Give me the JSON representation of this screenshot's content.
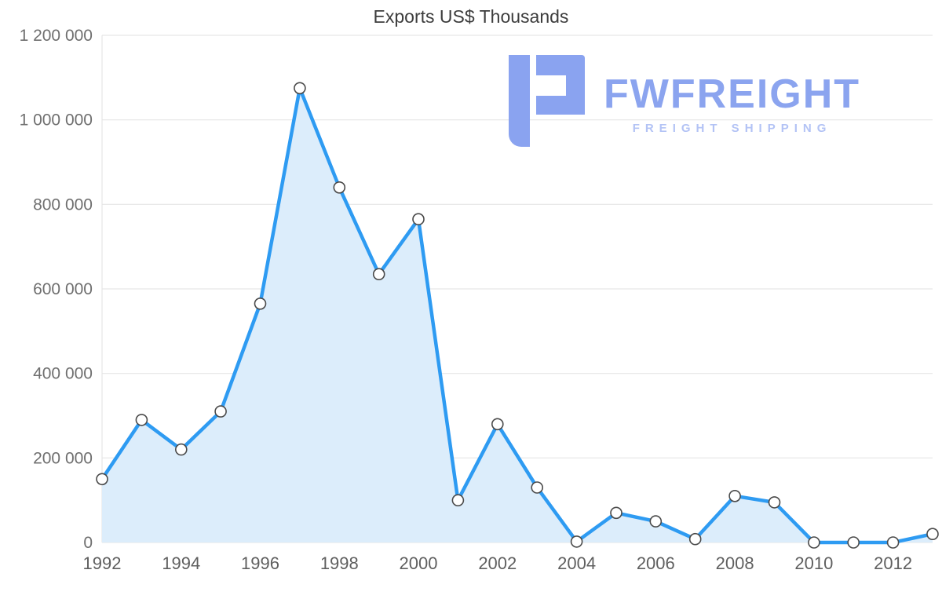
{
  "title": "Exports US$ Thousands",
  "watermark": {
    "name": "FWFREIGHT",
    "tagline": "FREIGHT SHIPPING",
    "icon_color": "#8aa3f0",
    "name_color": "#8ba4ef",
    "tagline_color": "#b3c3f5"
  },
  "chart_data": {
    "type": "area",
    "title": "Exports US$ Thousands",
    "xlabel": "",
    "ylabel": "",
    "x": [
      1992,
      1993,
      1994,
      1995,
      1996,
      1997,
      1998,
      1999,
      2000,
      2001,
      2002,
      2003,
      2004,
      2005,
      2006,
      2007,
      2008,
      2009,
      2010,
      2011,
      2012,
      2013
    ],
    "values": [
      150000,
      290000,
      220000,
      310000,
      565000,
      1075000,
      840000,
      635000,
      765000,
      100000,
      280000,
      130000,
      2000,
      70000,
      50000,
      8000,
      110000,
      95000,
      0,
      0,
      0,
      20000
    ],
    "ylim": [
      0,
      1200000
    ],
    "xticks": [
      1992,
      1994,
      1996,
      1998,
      2000,
      2002,
      2004,
      2006,
      2008,
      2010,
      2012
    ],
    "ytick_values": [
      0,
      200000,
      400000,
      600000,
      800000,
      1000000,
      1200000
    ],
    "ytick_labels": [
      "0",
      "200 000",
      "400 000",
      "600 000",
      "800 000",
      "1 000 000",
      "1 200 000"
    ],
    "grid": true,
    "legend": false,
    "line_color": "#2e9bf2",
    "area_color": "#dcedfb",
    "marker_fill": "#ffffff",
    "marker_stroke": "#4a4a4a",
    "grid_color": "#e2e2e2",
    "tick_color": "#6f6f6f"
  }
}
